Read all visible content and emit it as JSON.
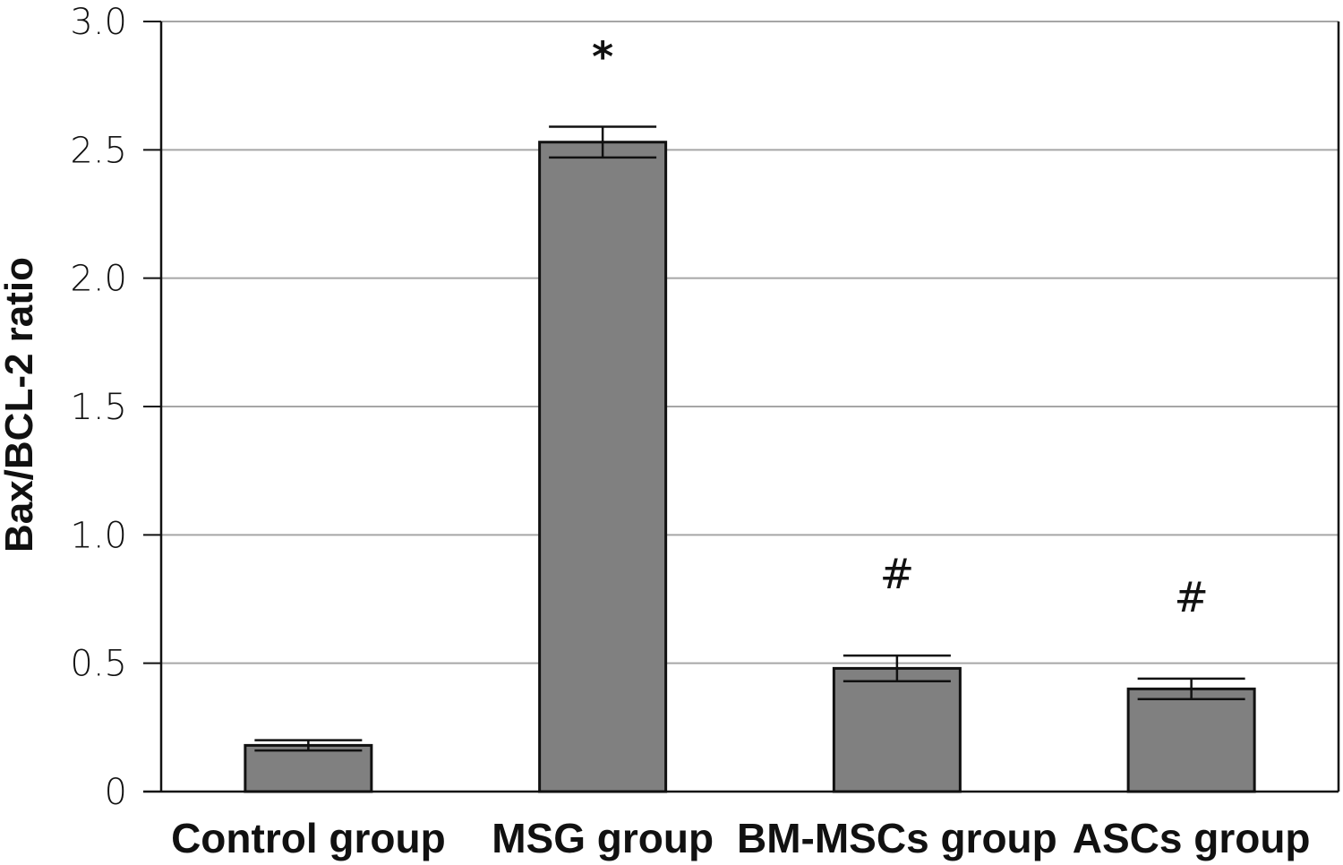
{
  "chart_data": {
    "type": "bar",
    "categories": [
      "Control group",
      "MSG group",
      "BM-MSCs group",
      "ASCs group"
    ],
    "values": [
      0.18,
      2.53,
      0.48,
      0.4
    ],
    "errors": [
      0.02,
      0.06,
      0.05,
      0.04
    ],
    "annotations": [
      "",
      "*",
      "#",
      "#"
    ],
    "ylabel": "Bax/BCL-2 ratio",
    "xlabel": "",
    "ylim": [
      0,
      3.0
    ],
    "yticks": [
      0,
      0.5,
      1.0,
      1.5,
      2.0,
      2.5,
      3.0
    ],
    "ytick_labels": [
      "0",
      "0.5",
      "1.0",
      "1.5",
      "2.0",
      "2.5",
      "3.0"
    ],
    "grid": true,
    "colors": {
      "bar": "#808080",
      "bar_edge": "#111111",
      "grid": "#a6a6a6",
      "axis": "#111111"
    }
  }
}
